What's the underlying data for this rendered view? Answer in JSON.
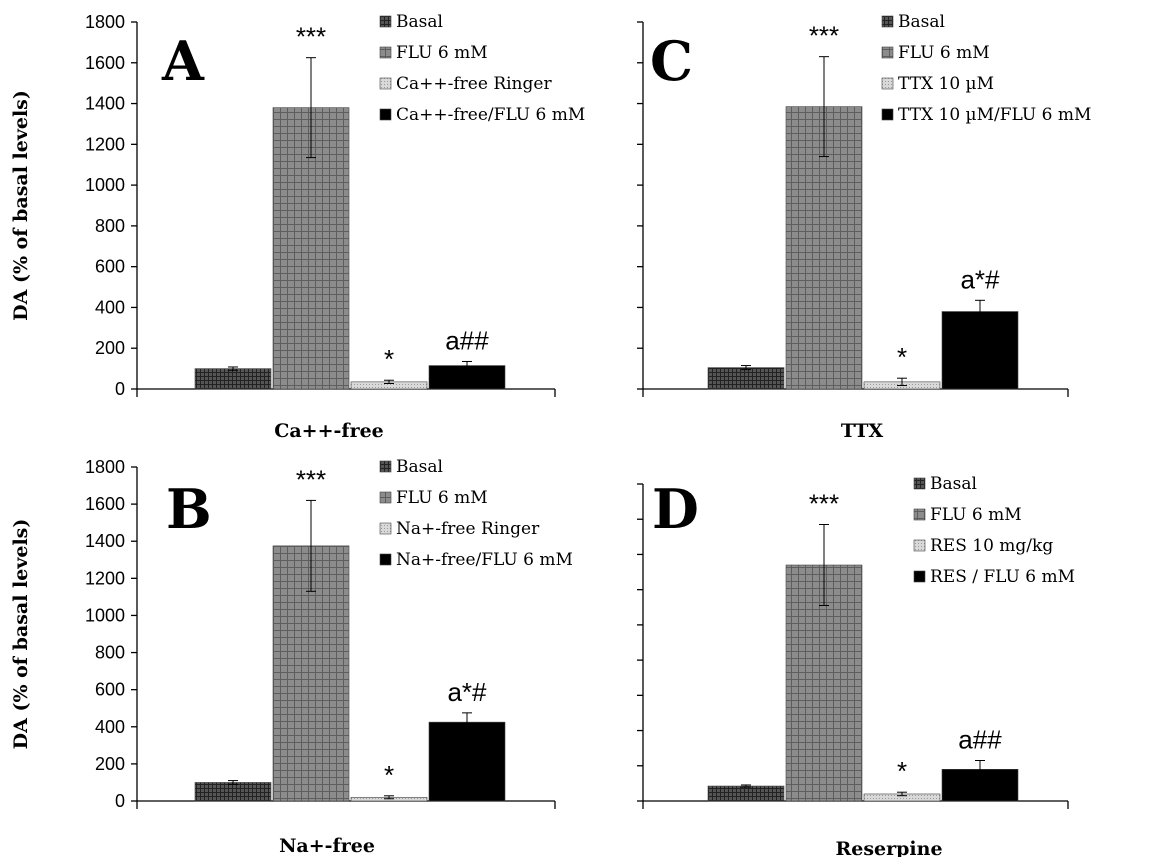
{
  "chart_data": [
    {
      "type": "bar",
      "panel_letter": "A",
      "xlabel": "Ca++-free",
      "ylabel": "DA (% of basal levels)",
      "ylim": [
        0,
        1800
      ],
      "yticks": [
        "0",
        "200",
        "400",
        "600",
        "800",
        "1000",
        "1200",
        "1400",
        "1600",
        "1800"
      ],
      "series": [
        {
          "name": "Basal",
          "value": 100,
          "error": 8,
          "annotation": "",
          "pattern": "basal"
        },
        {
          "name": "FLU 6 mM",
          "value": 1380,
          "error": 245,
          "annotation": "***",
          "pattern": "flu"
        },
        {
          "name": "Ca++-free Ringer",
          "value": 35,
          "error": 8,
          "annotation": "*",
          "pattern": "light"
        },
        {
          "name": "Ca++-free/FLU 6 mM",
          "value": 115,
          "error": 20,
          "annotation": "a##",
          "pattern": "black"
        }
      ]
    },
    {
      "type": "bar",
      "panel_letter": "C",
      "xlabel": "TTX",
      "ylabel": "",
      "ylim": [
        0,
        1800
      ],
      "yticks": [],
      "series": [
        {
          "name": "Basal",
          "value": 105,
          "error": 10,
          "annotation": "",
          "pattern": "basal"
        },
        {
          "name": "FLU 6 mM",
          "value": 1385,
          "error": 245,
          "annotation": "***",
          "pattern": "flu"
        },
        {
          "name": "TTX 10 µM",
          "value": 35,
          "error": 18,
          "annotation": "*",
          "pattern": "light"
        },
        {
          "name": "TTX 10 µM/FLU 6 mM",
          "value": 380,
          "error": 55,
          "annotation": "a*#",
          "pattern": "black"
        }
      ]
    },
    {
      "type": "bar",
      "panel_letter": "B",
      "xlabel": "Na+-free",
      "ylabel": "DA (% of basal levels)",
      "ylim": [
        0,
        1800
      ],
      "yticks": [
        "0",
        "200",
        "400",
        "600",
        "800",
        "1000",
        "1200",
        "1400",
        "1600",
        "1800"
      ],
      "series": [
        {
          "name": "Basal",
          "value": 100,
          "error": 10,
          "annotation": "",
          "pattern": "basal"
        },
        {
          "name": "FLU 6 mM",
          "value": 1375,
          "error": 245,
          "annotation": "***",
          "pattern": "flu"
        },
        {
          "name": "Na+-free Ringer",
          "value": 20,
          "error": 8,
          "annotation": "*",
          "pattern": "light"
        },
        {
          "name": "Na+-free/FLU 6 mM",
          "value": 425,
          "error": 50,
          "annotation": "a*#",
          "pattern": "black"
        }
      ]
    },
    {
      "type": "bar",
      "panel_letter": "D",
      "xlabel": "Reserpine",
      "ylabel": "",
      "ylim": [
        0,
        1800
      ],
      "yticks": [],
      "series": [
        {
          "name": "Basal",
          "value": 85,
          "error": 6,
          "annotation": "",
          "pattern": "basal"
        },
        {
          "name": "FLU 6 mM",
          "value": 1340,
          "error": 230,
          "annotation": "***",
          "pattern": "flu"
        },
        {
          "name": "RES 10 mg/kg",
          "value": 40,
          "error": 10,
          "annotation": "*",
          "pattern": "light"
        },
        {
          "name": "RES / FLU 6 mM",
          "value": 180,
          "error": 50,
          "annotation": "a##",
          "pattern": "black"
        }
      ]
    }
  ]
}
